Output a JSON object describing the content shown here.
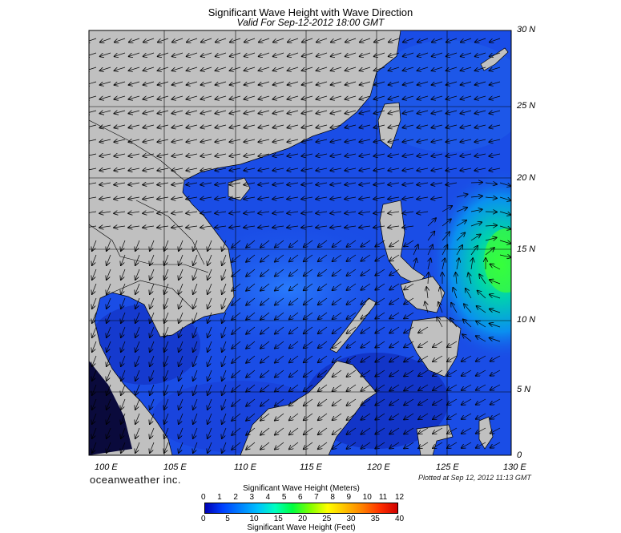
{
  "title": "Significant Wave Height with Wave Direction",
  "subtitle": "Valid For Sep-12-2012 18:00 GMT",
  "lat_labels": [
    "30 N",
    "25 N",
    "20 N",
    "15 N",
    "10 N",
    "5 N",
    "0"
  ],
  "lon_labels": [
    "100 E",
    "105 E",
    "110 E",
    "115 E",
    "120 E",
    "125 E",
    "130 E"
  ],
  "brand": "oceanweather inc.",
  "plotted_at": "Plotted at Sep 12, 2012 11:13 GMT",
  "colorbar": {
    "meters_title": "Significant Wave Height (Meters)",
    "meters_ticks": [
      "0",
      "1",
      "2",
      "3",
      "4",
      "5",
      "6",
      "7",
      "8",
      "9",
      "10",
      "11",
      "12"
    ],
    "feet_title": "Significant Wave Height (Feet)",
    "feet_ticks": [
      "0",
      "5",
      "10",
      "15",
      "20",
      "25",
      "30",
      "35",
      "40"
    ],
    "colors": [
      "#0000b4",
      "#0040ff",
      "#0080ff",
      "#00c0ff",
      "#00ffc0",
      "#00ff40",
      "#80ff00",
      "#ffff00",
      "#ffc000",
      "#ff8000",
      "#ff3000",
      "#d00000"
    ]
  },
  "colors": {
    "land": "#c0c0c0",
    "ocean_base": "#1a4de6",
    "swell_high": "#22ff55",
    "grid": "#000000"
  },
  "map_extent": {
    "lon_min": 99,
    "lon_max": 130,
    "lat_min": 0,
    "lat_max": 30
  }
}
